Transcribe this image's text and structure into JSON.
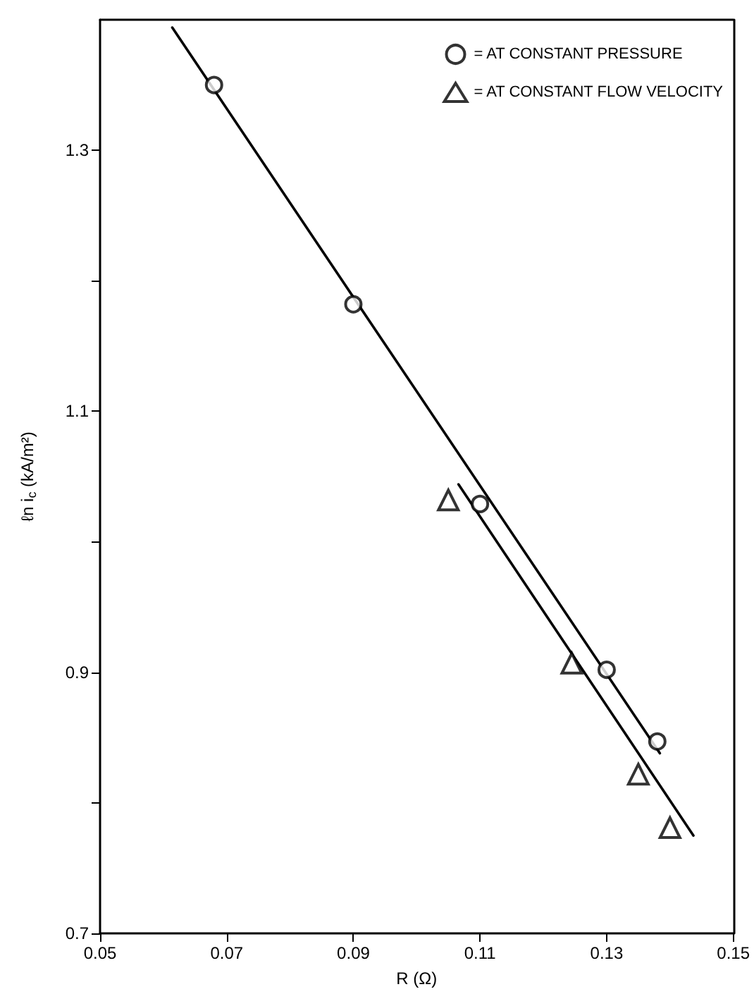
{
  "chart_data": {
    "type": "scatter",
    "xlabel": "R (Ω)",
    "ylabel": "ℓn i$_{c}$ (kA/m²)",
    "xlim": [
      0.05,
      0.15
    ],
    "xticks": [
      0.05,
      0.07,
      0.09,
      0.11,
      0.13,
      0.15
    ],
    "ylim": [
      0.7,
      1.4
    ],
    "yticks": [
      0.7,
      {
        "value": 0.8,
        "label": null
      },
      0.9,
      {
        "value": 1.0,
        "label": null
      },
      1.1,
      {
        "value": 1.2,
        "label": null
      },
      1.3
    ],
    "grid": false,
    "legend": "top right",
    "line_style": "solid",
    "series": [
      {
        "name": "= AT CONSTANT PRESSURE",
        "color": "#000000",
        "marker": "circle",
        "x": [
          0.068,
          0.09,
          0.11,
          0.13,
          0.138
        ],
        "values": [
          1.35,
          1.182,
          1.029,
          0.902,
          0.847
        ]
      },
      {
        "name": "= AT CONSTANT FLOW VELOCITY",
        "color": "#000000",
        "marker": "triangle",
        "x": [
          0.105,
          0.1245,
          0.135,
          0.14
        ],
        "values": [
          1.032,
          0.907,
          0.822,
          0.781
        ]
      },
      {
        "type": "line",
        "color": "#000000",
        "marker": "none",
        "x": [
          0.0614,
          0.1384
        ],
        "values": [
          1.394,
          0.838
        ]
      },
      {
        "type": "line",
        "color": "#000000",
        "marker": "none",
        "x": [
          0.1066,
          0.1437
        ],
        "values": [
          1.044,
          0.775
        ]
      }
    ]
  }
}
